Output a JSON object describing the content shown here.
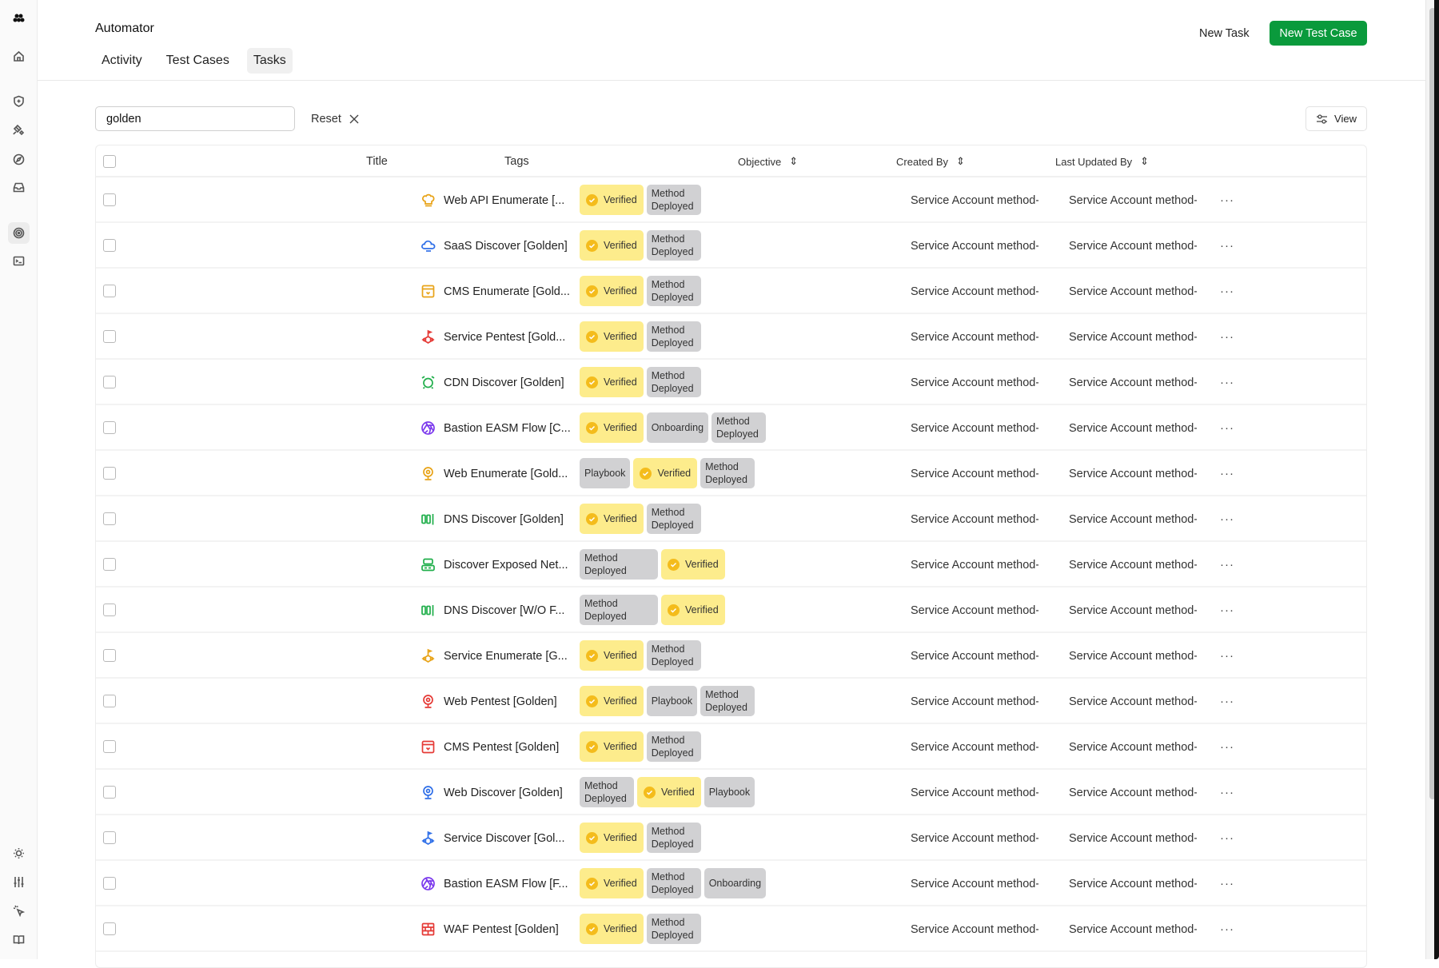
{
  "app": {
    "title": "Automator"
  },
  "tabs": [
    {
      "label": "Activity",
      "active": false
    },
    {
      "label": "Test Cases",
      "active": false
    },
    {
      "label": "Tasks",
      "active": true
    }
  ],
  "header": {
    "new_task": "New Task",
    "new_test_case": "New Test Case",
    "brand_color": "#0a9a3c"
  },
  "sidebar": {
    "logo": "team-logo-icon",
    "items": [
      "home-icon",
      "shield-plus-icon",
      "satellite-icon",
      "compass-icon",
      "inbox-icon",
      "target-icon",
      "terminal-icon"
    ],
    "active": "target-icon",
    "bottom": [
      "sun-icon",
      "sliders-icon",
      "pointer-click-icon",
      "book-open-icon"
    ]
  },
  "filter": {
    "search_value": "golden",
    "reset_label": "Reset",
    "view_label": "View"
  },
  "table": {
    "columns": {
      "title": "Title",
      "tags": "Tags",
      "objective": "Objective",
      "created_by": "Created By",
      "last_updated_by": "Last Updated By"
    },
    "rows": [
      {
        "title": "Web API Enumerate [...",
        "icon": "chef-hat-icon",
        "color": "#e8a317",
        "tags": [
          "Verified",
          "Method Deployed"
        ],
        "created_by": "Service Account method-",
        "updated_by": "Service Account method-"
      },
      {
        "title": "SaaS Discover [Golden]",
        "icon": "cloud-icon",
        "color": "#2f6fe8",
        "tags": [
          "Verified",
          "Method Deployed"
        ],
        "created_by": "Service Account method-",
        "updated_by": "Service Account method-"
      },
      {
        "title": "CMS Enumerate [Gold...",
        "icon": "browser-window-icon",
        "color": "#e8a317",
        "tags": [
          "Verified",
          "Method Deployed"
        ],
        "created_by": "Service Account method-",
        "updated_by": "Service Account method-"
      },
      {
        "title": "Service Pentest [Gold...",
        "icon": "network-flag-icon",
        "color": "#e53935",
        "tags": [
          "Verified",
          "Method Deployed"
        ],
        "created_by": "Service Account method-",
        "updated_by": "Service Account method-"
      },
      {
        "title": "CDN Discover [Golden]",
        "icon": "alarm-icon",
        "color": "#1fae4a",
        "tags": [
          "Verified",
          "Method Deployed"
        ],
        "created_by": "Service Account method-",
        "updated_by": "Service Account method-"
      },
      {
        "title": "Bastion EASM Flow [C...",
        "icon": "aperture-icon",
        "color": "#7c3aed",
        "tags": [
          "Verified",
          "Onboarding",
          "Method Deployed"
        ],
        "created_by": "Service Account method-",
        "updated_by": "Service Account method-"
      },
      {
        "title": "Web Enumerate [Gold...",
        "icon": "webcam-icon",
        "color": "#e8a317",
        "tags": [
          "Playbook",
          "Verified",
          "Method Deployed"
        ],
        "created_by": "Service Account method-",
        "updated_by": "Service Account method-"
      },
      {
        "title": "DNS Discover [Golden]",
        "icon": "dns-icon",
        "color": "#1fae4a",
        "tags": [
          "Verified",
          "Method Deployed"
        ],
        "created_by": "Service Account method-",
        "updated_by": "Service Account method-"
      },
      {
        "title": "Discover Exposed Net...",
        "icon": "server-icon",
        "color": "#1fae4a",
        "tags": [
          "Method Deployed",
          "Verified"
        ],
        "created_by": "Service Account method-",
        "updated_by": "Service Account method-"
      },
      {
        "title": "DNS Discover [W/O F...",
        "icon": "dns-icon",
        "color": "#1fae4a",
        "tags": [
          "Method Deployed",
          "Verified"
        ],
        "created_by": "Service Account method-",
        "updated_by": "Service Account method-"
      },
      {
        "title": "Service Enumerate [G...",
        "icon": "network-flag-icon",
        "color": "#e8a317",
        "tags": [
          "Verified",
          "Method Deployed"
        ],
        "created_by": "Service Account method-",
        "updated_by": "Service Account method-"
      },
      {
        "title": "Web Pentest [Golden]",
        "icon": "webcam-icon",
        "color": "#e53935",
        "tags": [
          "Verified",
          "Playbook",
          "Method Deployed"
        ],
        "created_by": "Service Account method-",
        "updated_by": "Service Account method-"
      },
      {
        "title": "CMS Pentest [Golden]",
        "icon": "browser-window-icon",
        "color": "#e53935",
        "tags": [
          "Verified",
          "Method Deployed"
        ],
        "created_by": "Service Account method-",
        "updated_by": "Service Account method-"
      },
      {
        "title": "Web Discover [Golden]",
        "icon": "webcam-icon",
        "color": "#2f6fe8",
        "tags": [
          "Method Deployed",
          "Verified",
          "Playbook"
        ],
        "created_by": "Service Account method-",
        "updated_by": "Service Account method-"
      },
      {
        "title": "Service Discover [Gol...",
        "icon": "network-flag-icon",
        "color": "#2f6fe8",
        "tags": [
          "Verified",
          "Method Deployed"
        ],
        "created_by": "Service Account method-",
        "updated_by": "Service Account method-"
      },
      {
        "title": "Bastion EASM Flow [F...",
        "icon": "aperture-icon",
        "color": "#7c3aed",
        "tags": [
          "Verified",
          "Method Deployed",
          "Onboarding"
        ],
        "created_by": "Service Account method-",
        "updated_by": "Service Account method-"
      },
      {
        "title": "WAF Pentest [Golden]",
        "icon": "brick-wall-icon",
        "color": "#e53935",
        "tags": [
          "Verified",
          "Method Deployed"
        ],
        "created_by": "Service Account method-",
        "updated_by": "Service Account method-"
      }
    ],
    "row_menu": "···"
  }
}
